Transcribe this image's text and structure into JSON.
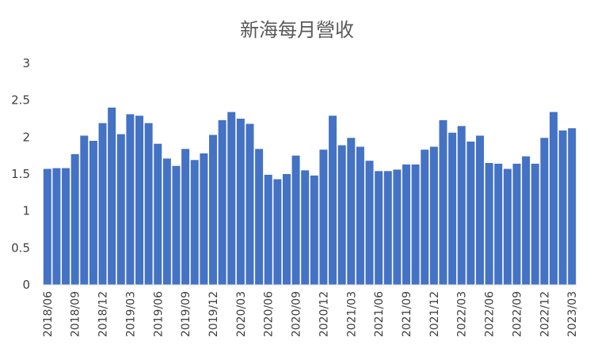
{
  "chart_data": {
    "type": "bar",
    "title": "新海每月營收",
    "xlabel": "",
    "ylabel": "",
    "ylim": [
      0,
      3
    ],
    "yticks": [
      "0",
      "0.5",
      "1",
      "1.5",
      "2",
      "2.5",
      "3"
    ],
    "grid": false,
    "legend": "none",
    "bar_color": "#4472C4",
    "categories": [
      "2018/06",
      "2018/07",
      "2018/08",
      "2018/09",
      "2018/10",
      "2018/11",
      "2018/12",
      "2019/01",
      "2019/02",
      "2019/03",
      "2019/04",
      "2019/05",
      "2019/06",
      "2019/07",
      "2019/08",
      "2019/09",
      "2019/10",
      "2019/11",
      "2019/12",
      "2020/01",
      "2020/02",
      "2020/03",
      "2020/04",
      "2020/05",
      "2020/06",
      "2020/07",
      "2020/08",
      "2020/09",
      "2020/10",
      "2020/11",
      "2020/12",
      "2021/01",
      "2021/02",
      "2021/03",
      "2021/04",
      "2021/05",
      "2021/06",
      "2021/07",
      "2021/08",
      "2021/09",
      "2021/10",
      "2021/11",
      "2021/12",
      "2022/01",
      "2022/02",
      "2022/03",
      "2022/04",
      "2022/05",
      "2022/06",
      "2022/07",
      "2022/08",
      "2022/09",
      "2022/10",
      "2022/11",
      "2022/12",
      "2023/01",
      "2023/02",
      "2023/03"
    ],
    "xtick_labels": [
      "2018/06",
      "2018/09",
      "2018/12",
      "2019/03",
      "2019/06",
      "2019/09",
      "2019/12",
      "2020/03",
      "2020/06",
      "2020/09",
      "2020/12",
      "2021/03",
      "2021/06",
      "2021/09",
      "2021/12",
      "2022/03",
      "2022/06",
      "2022/09",
      "2022/12",
      "2023/03"
    ],
    "values": [
      1.57,
      1.58,
      1.58,
      1.77,
      2.02,
      1.95,
      2.19,
      2.4,
      2.04,
      2.31,
      2.29,
      2.19,
      1.91,
      1.71,
      1.61,
      1.84,
      1.69,
      1.78,
      2.03,
      2.23,
      2.34,
      2.25,
      2.18,
      1.84,
      1.49,
      1.43,
      1.5,
      1.75,
      1.55,
      1.48,
      1.83,
      2.29,
      1.89,
      1.99,
      1.87,
      1.68,
      1.54,
      1.54,
      1.56,
      1.63,
      1.63,
      1.83,
      1.87,
      2.23,
      2.06,
      2.15,
      1.94,
      2.02,
      1.65,
      1.64,
      1.57,
      1.64,
      1.74,
      1.64,
      1.99,
      2.34,
      2.09,
      2.12
    ]
  }
}
